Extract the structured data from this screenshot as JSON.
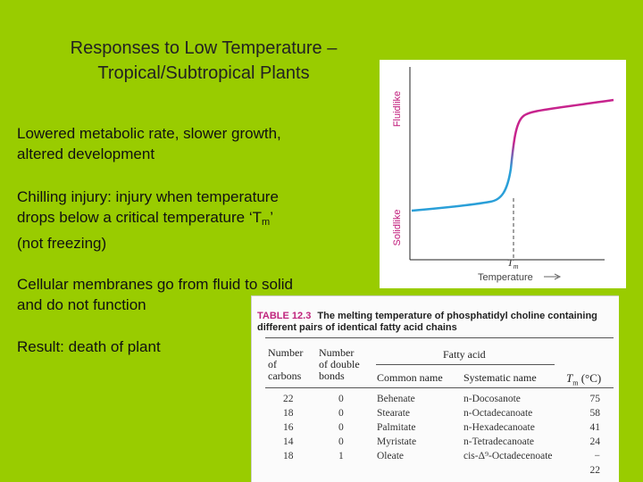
{
  "slide": {
    "title_line1": "Responses to Low Temperature –",
    "title_line2": "Tropical/Subtropical Plants",
    "bullets": {
      "b1": "Lowered metabolic rate, slower growth, altered development",
      "b2_pre": "Chilling injury: injury when temperature drops below a critical temperature ‘T",
      "b2_sub": "m",
      "b2_post": "’ (not freezing)",
      "b3": "Cellular membranes go from fluid to solid and do not function",
      "b4": "Result: death of plant"
    }
  },
  "graph": {
    "label_top": "Fluidlike",
    "label_bottom": "Solidlike",
    "tm_label": "T",
    "tm_sub": "m",
    "x_axis_label": "Temperature",
    "colors": {
      "solid": "#2a9fd8",
      "fluid": "#c7248d",
      "label": "#c01a7a"
    }
  },
  "table": {
    "number": "TABLE 12.3",
    "title_line1": "The melting temperature of phosphatidyl choline containing",
    "title_line2": "different pairs of identical fatty acid chains",
    "headers": {
      "carbons": [
        "Number",
        "of",
        "carbons"
      ],
      "bonds": [
        "Number",
        "of double",
        "bonds"
      ],
      "fatty_acid": "Fatty acid",
      "common": "Common name",
      "systematic": "Systematic name",
      "tm": "T",
      "tm_sub": "m",
      "tm_unit": "(°C)"
    },
    "rows": [
      {
        "carbons": "22",
        "bonds": "0",
        "common": "Behenate",
        "systematic": "n-Docosanote",
        "tm": "75"
      },
      {
        "carbons": "18",
        "bonds": "0",
        "common": "Stearate",
        "systematic": "n-Octadecanoate",
        "tm": "58"
      },
      {
        "carbons": "16",
        "bonds": "0",
        "common": "Palmitate",
        "systematic": "n-Hexadecanoate",
        "tm": "41"
      },
      {
        "carbons": "14",
        "bonds": "0",
        "common": "Myristate",
        "systematic": "n-Tetradecanoate",
        "tm": "24"
      },
      {
        "carbons": "18",
        "bonds": "1",
        "common": "Oleate",
        "systematic": "cis-Δ⁹-Octadecenoate",
        "tm": "− 22"
      }
    ]
  }
}
